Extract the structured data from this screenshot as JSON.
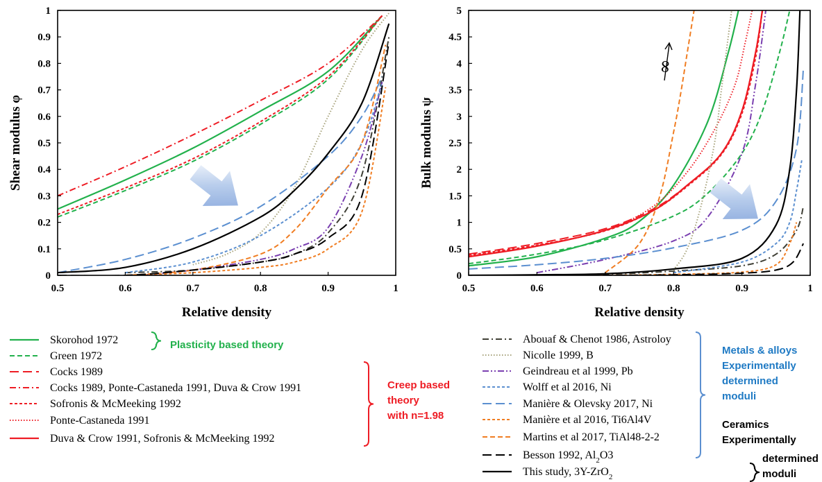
{
  "colors": {
    "green": "#22b14c",
    "red": "#ee1c24",
    "olive": "#3f3f35",
    "khaki": "#a6a27a",
    "purple": "#7a3fb0",
    "blue": "#5b8fd0",
    "orange": "#f07d22",
    "black": "#000000",
    "blue_text": "#1f7ac4",
    "arrow": "#a7c0e8"
  },
  "chart_data": [
    {
      "type": "line",
      "title": "",
      "xlabel": "Relative density",
      "ylabel": "Shear modulus φ",
      "xlim": [
        0.5,
        1
      ],
      "ylim": [
        0,
        1
      ],
      "xticks": [
        "0.5",
        "0.6",
        "0.7",
        "0.8",
        "0.9",
        "1"
      ],
      "yticks": [
        "0",
        "0.1",
        "0.2",
        "0.3",
        "0.4",
        "0.5",
        "0.6",
        "0.7",
        "0.8",
        "0.9",
        "1"
      ],
      "grid": false,
      "series": [
        {
          "name": "Skorohod 1972",
          "color": "green",
          "dash": "solid",
          "x": [
            0.5,
            0.6,
            0.7,
            0.8,
            0.9,
            0.98
          ],
          "y": [
            0.25,
            0.36,
            0.48,
            0.62,
            0.77,
            0.98
          ]
        },
        {
          "name": "Green 1972",
          "color": "green",
          "dash": "dash",
          "x": [
            0.5,
            0.6,
            0.7,
            0.8,
            0.9,
            0.98
          ],
          "y": [
            0.22,
            0.32,
            0.43,
            0.57,
            0.74,
            0.98
          ]
        },
        {
          "name": "Cocks 1989, Ponte-Castaneda 1991, Duva & Crow 1991",
          "color": "red",
          "dash": "dashdot",
          "x": [
            0.5,
            0.6,
            0.7,
            0.8,
            0.9,
            0.98
          ],
          "y": [
            0.3,
            0.41,
            0.53,
            0.66,
            0.8,
            0.98
          ]
        },
        {
          "name": "Sofronis & McMeeking 1992",
          "color": "red",
          "dash": "shortdash",
          "x": [
            0.5,
            0.6,
            0.7,
            0.8,
            0.9,
            0.98
          ],
          "y": [
            0.23,
            0.33,
            0.44,
            0.58,
            0.75,
            0.98
          ]
        },
        {
          "name": "Abouaf & Chenot 1986, Astroloy",
          "color": "olive",
          "dash": "dashdot",
          "x": [
            0.6,
            0.7,
            0.8,
            0.85,
            0.9,
            0.95,
            0.99
          ],
          "y": [
            0.01,
            0.02,
            0.05,
            0.08,
            0.16,
            0.38,
            0.9
          ]
        },
        {
          "name": "Nicolle 1999, B",
          "color": "khaki",
          "dash": "dot",
          "x": [
            0.7,
            0.75,
            0.8,
            0.85,
            0.9,
            0.95,
            0.99
          ],
          "y": [
            0.04,
            0.08,
            0.16,
            0.33,
            0.6,
            0.85,
            0.99
          ]
        },
        {
          "name": "Geindreau et al 1999, Pb",
          "color": "purple",
          "dash": "dashdotdot",
          "x": [
            0.62,
            0.7,
            0.8,
            0.85,
            0.9,
            0.95,
            0.98
          ],
          "y": [
            0.0,
            0.02,
            0.06,
            0.1,
            0.18,
            0.45,
            0.73
          ]
        },
        {
          "name": "Wolff et al 2016, Ni",
          "color": "blue",
          "dash": "shortdash",
          "x": [
            0.6,
            0.7,
            0.8,
            0.9,
            0.95,
            0.98
          ],
          "y": [
            0.01,
            0.05,
            0.15,
            0.33,
            0.5,
            0.73
          ]
        },
        {
          "name": "Manière & Olevsky 2017, Ni",
          "color": "blue",
          "dash": "longdash",
          "x": [
            0.5,
            0.6,
            0.7,
            0.8,
            0.9,
            0.95,
            0.98
          ],
          "y": [
            0.01,
            0.06,
            0.14,
            0.26,
            0.45,
            0.6,
            0.75
          ]
        },
        {
          "name": "Manière et al 2016, Ti6Al4V",
          "color": "orange",
          "dash": "shortdash",
          "x": [
            0.6,
            0.7,
            0.8,
            0.85,
            0.9,
            0.95,
            0.985
          ],
          "y": [
            0.0,
            0.01,
            0.03,
            0.05,
            0.1,
            0.24,
            0.71
          ]
        },
        {
          "name": "Martins et al 2017, TiAl48-2-2",
          "color": "orange",
          "dash": "dash",
          "x": [
            0.6,
            0.7,
            0.8,
            0.85,
            0.9,
            0.95,
            0.985
          ],
          "y": [
            0.0,
            0.02,
            0.08,
            0.17,
            0.33,
            0.5,
            0.87
          ]
        },
        {
          "name": "Besson 1992, Al2O3",
          "color": "black",
          "dash": "longdash",
          "x": [
            0.5,
            0.6,
            0.7,
            0.8,
            0.85,
            0.9,
            0.95,
            0.99
          ],
          "y": [
            0.0,
            0.0,
            0.02,
            0.05,
            0.08,
            0.14,
            0.3,
            0.88
          ]
        },
        {
          "name": "This study, 3Y-ZrO2",
          "color": "black",
          "dash": "solid",
          "x": [
            0.5,
            0.6,
            0.7,
            0.8,
            0.85,
            0.9,
            0.95,
            0.99
          ],
          "y": [
            0.01,
            0.03,
            0.1,
            0.22,
            0.32,
            0.46,
            0.65,
            0.95
          ]
        }
      ],
      "annotation_arrow": "decreasing-moduli"
    },
    {
      "type": "line",
      "title": "",
      "xlabel": "Relative density",
      "ylabel": "Bulk modulus ψ",
      "xlim": [
        0.5,
        1
      ],
      "ylim": [
        0,
        5
      ],
      "xticks": [
        "0.5",
        "0.6",
        "0.7",
        "0.8",
        "0.9",
        "1"
      ],
      "yticks": [
        "0",
        "0.5",
        "1",
        "1.5",
        "2",
        "2.5",
        "3",
        "3.5",
        "4",
        "4.5",
        "5"
      ],
      "grid": false,
      "annotation_text": "∞",
      "series": [
        {
          "name": "Skorohod 1972",
          "color": "green",
          "dash": "solid",
          "x": [
            0.5,
            0.6,
            0.7,
            0.75,
            0.8,
            0.85,
            0.88,
            0.895
          ],
          "y": [
            0.18,
            0.35,
            0.7,
            1.02,
            1.7,
            2.9,
            4.2,
            5.0
          ]
        },
        {
          "name": "Green 1972",
          "color": "green",
          "dash": "dash",
          "x": [
            0.5,
            0.6,
            0.7,
            0.8,
            0.85,
            0.9,
            0.93,
            0.955,
            0.97
          ],
          "y": [
            0.22,
            0.4,
            0.67,
            1.12,
            1.55,
            2.3,
            3.1,
            4.2,
            5.0
          ]
        },
        {
          "name": "Cocks 1989",
          "color": "red",
          "dash": "longdash",
          "x": [
            0.5,
            0.6,
            0.7,
            0.77,
            0.82,
            0.87,
            0.9,
            0.92,
            0.93
          ],
          "y": [
            0.4,
            0.6,
            0.88,
            1.25,
            1.7,
            2.3,
            3.1,
            4.2,
            5.0
          ]
        },
        {
          "name": "Sofronis & McMeeking 1992",
          "color": "red",
          "dash": "shortdash",
          "x": [
            0.5,
            0.6,
            0.7,
            0.77,
            0.82,
            0.87,
            0.9,
            0.92,
            0.93
          ],
          "y": [
            0.38,
            0.57,
            0.84,
            1.22,
            1.68,
            2.28,
            3.05,
            4.1,
            5.0
          ]
        },
        {
          "name": "Ponte-Castaneda 1991",
          "color": "red",
          "dash": "dot",
          "x": [
            0.5,
            0.6,
            0.7,
            0.77,
            0.82,
            0.86,
            0.89,
            0.905,
            0.915
          ],
          "y": [
            0.36,
            0.56,
            0.85,
            1.3,
            1.95,
            2.75,
            3.6,
            4.4,
            5.0
          ]
        },
        {
          "name": "Duva & Crow 1991, Sofronis & McMeeking 1992",
          "color": "red",
          "dash": "solid",
          "x": [
            0.5,
            0.6,
            0.7,
            0.77,
            0.82,
            0.87,
            0.9,
            0.92,
            0.93
          ],
          "y": [
            0.35,
            0.55,
            0.85,
            1.22,
            1.7,
            2.3,
            3.1,
            4.2,
            5.0
          ]
        },
        {
          "name": "Abouaf & Chenot 1986, Astroloy",
          "color": "olive",
          "dash": "dashdot",
          "x": [
            0.6,
            0.7,
            0.8,
            0.9,
            0.95,
            0.98,
            0.99
          ],
          "y": [
            0.0,
            0.02,
            0.08,
            0.18,
            0.4,
            0.85,
            1.3
          ]
        },
        {
          "name": "Nicolle 1999, B",
          "color": "khaki",
          "dash": "dot",
          "x": [
            0.8,
            0.82,
            0.84,
            0.86,
            0.87,
            0.88,
            0.885
          ],
          "y": [
            0.1,
            0.5,
            1.3,
            2.5,
            3.5,
            4.5,
            5.0
          ]
        },
        {
          "name": "Geindreau et al 1999, Pb",
          "color": "purple",
          "dash": "dashdotdot",
          "x": [
            0.6,
            0.7,
            0.8,
            0.85,
            0.9,
            0.92,
            0.935
          ],
          "y": [
            0.05,
            0.3,
            0.65,
            1.1,
            2.3,
            3.6,
            5.0
          ]
        },
        {
          "name": "Wolff et al 2016, Ni",
          "color": "blue",
          "dash": "shortdash",
          "x": [
            0.8,
            0.9,
            0.95,
            0.97,
            0.98,
            0.988
          ],
          "y": [
            0.05,
            0.25,
            0.6,
            1.0,
            1.6,
            2.2
          ]
        },
        {
          "name": "Manière & Olevsky 2017, Ni",
          "color": "blue",
          "dash": "longdash",
          "x": [
            0.5,
            0.6,
            0.7,
            0.8,
            0.9,
            0.95,
            0.98,
            0.99
          ],
          "y": [
            0.12,
            0.2,
            0.32,
            0.52,
            0.85,
            1.4,
            2.4,
            3.9
          ]
        },
        {
          "name": "Manière et al 2016, Ti6Al4V",
          "color": "orange",
          "dash": "shortdash",
          "x": [
            0.6,
            0.7,
            0.8,
            0.9,
            0.95,
            0.97,
            0.98
          ],
          "y": [
            0.0,
            0.0,
            0.02,
            0.06,
            0.2,
            0.6,
            1.0
          ]
        },
        {
          "name": "Martins et al 2017, TiAl48-2-2",
          "color": "orange",
          "dash": "dash",
          "x": [
            0.7,
            0.75,
            0.78,
            0.8,
            0.81,
            0.82,
            0.83
          ],
          "y": [
            0.05,
            0.6,
            1.5,
            2.7,
            3.4,
            4.2,
            5.0
          ]
        },
        {
          "name": "Besson 1992, Al2O3",
          "color": "black",
          "dash": "longdash",
          "x": [
            0.6,
            0.7,
            0.8,
            0.9,
            0.95,
            0.975,
            0.99
          ],
          "y": [
            0.0,
            0.0,
            0.01,
            0.04,
            0.1,
            0.25,
            0.6
          ]
        },
        {
          "name": "This study, 3Y-ZrO2",
          "color": "black",
          "dash": "solid",
          "x": [
            0.5,
            0.6,
            0.7,
            0.8,
            0.9,
            0.95,
            0.97,
            0.98,
            0.985
          ],
          "y": [
            0.0,
            0.01,
            0.03,
            0.12,
            0.32,
            0.95,
            2.0,
            3.5,
            5.0
          ]
        }
      ],
      "annotation_arrow": "decreasing-moduli"
    }
  ],
  "legend_left": {
    "items": [
      {
        "label": "Skorohod 1972",
        "color": "green",
        "dash": "solid"
      },
      {
        "label": "Green 1972",
        "color": "green",
        "dash": "dash"
      },
      {
        "label": "Cocks 1989",
        "color": "red",
        "dash": "longdash"
      },
      {
        "label": "Cocks 1989, Ponte-Castaneda 1991, Duva & Crow 1991",
        "color": "red",
        "dash": "dashdot"
      },
      {
        "label": "Sofronis & McMeeking 1992",
        "color": "red",
        "dash": "shortdash"
      },
      {
        "label": "Ponte-Castaneda 1991",
        "color": "red",
        "dash": "dot"
      },
      {
        "label": "Duva & Crow 1991, Sofronis & McMeeking 1992",
        "color": "red",
        "dash": "solid"
      }
    ],
    "groups": [
      {
        "lines": [
          "Plasticity based theory"
        ],
        "color": "green"
      },
      {
        "lines": [
          "Creep based",
          "theory",
          "with n=1.98"
        ],
        "color": "red"
      }
    ]
  },
  "legend_right": {
    "items": [
      {
        "label": "Abouaf & Chenot 1986, Astroloy",
        "color": "olive",
        "dash": "dashdot"
      },
      {
        "label": "Nicolle 1999, B",
        "color": "khaki",
        "dash": "dot"
      },
      {
        "label": "Geindreau et al 1999, Pb",
        "color": "purple",
        "dash": "dashdotdot"
      },
      {
        "label": "Wolff et al 2016, Ni",
        "color": "blue",
        "dash": "shortdash"
      },
      {
        "label": "Manière & Olevsky 2017, Ni",
        "color": "blue",
        "dash": "longdash"
      },
      {
        "label": "Manière et al 2016, Ti6Al4V",
        "color": "orange",
        "dash": "shortdash"
      },
      {
        "label": "Martins et al 2017, TiAl48-2-2",
        "color": "orange",
        "dash": "dash"
      },
      {
        "label": "Besson 1992, Al2O3",
        "color": "black",
        "dash": "longdash"
      },
      {
        "label": "This study, 3Y-ZrO2",
        "color": "black",
        "dash": "solid"
      }
    ],
    "groups": [
      {
        "lines": [
          "Metals & alloys",
          "Experimentally",
          "determined",
          "moduli"
        ],
        "color": "blue_text"
      },
      {
        "lines": [
          "Ceramics",
          "Experimentally",
          "determined",
          "moduli"
        ],
        "color": "black"
      }
    ]
  }
}
